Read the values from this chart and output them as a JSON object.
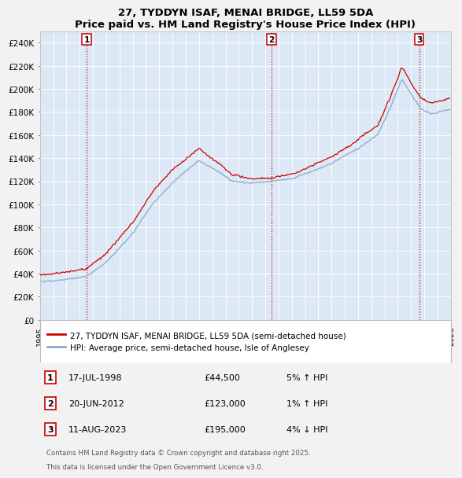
{
  "title": "27, TYDDYN ISAF, MENAI BRIDGE, LL59 5DA",
  "subtitle": "Price paid vs. HM Land Registry's House Price Index (HPI)",
  "ylim": [
    0,
    250000
  ],
  "yticks": [
    0,
    20000,
    40000,
    60000,
    80000,
    100000,
    120000,
    140000,
    160000,
    180000,
    200000,
    220000,
    240000
  ],
  "ytick_labels": [
    "£0",
    "£20K",
    "£40K",
    "£60K",
    "£80K",
    "£100K",
    "£120K",
    "£140K",
    "£160K",
    "£180K",
    "£200K",
    "£220K",
    "£240K"
  ],
  "sale1_date": 1998.54,
  "sale1_price": 44500,
  "sale2_date": 2012.47,
  "sale2_price": 123000,
  "sale3_date": 2023.61,
  "sale3_price": 195000,
  "line_color_red": "#cc0000",
  "line_color_blue": "#88aacc",
  "plot_bg_color": "#dce8f5",
  "fig_bg_color": "#f2f2f2",
  "legend_label_red": "27, TYDDYN ISAF, MENAI BRIDGE, LL59 5DA (semi-detached house)",
  "legend_label_blue": "HPI: Average price, semi-detached house, Isle of Anglesey",
  "footer1": "Contains HM Land Registry data © Crown copyright and database right 2025.",
  "footer2": "This data is licensed under the Open Government Licence v3.0.",
  "table_rows": [
    {
      "num": "1",
      "date": "17-JUL-1998",
      "price": "£44,500",
      "hpi": "5% ↑ HPI"
    },
    {
      "num": "2",
      "date": "20-JUN-2012",
      "price": "£123,000",
      "hpi": "1% ↑ HPI"
    },
    {
      "num": "3",
      "date": "11-AUG-2023",
      "price": "£195,000",
      "hpi": "4% ↓ HPI"
    }
  ]
}
